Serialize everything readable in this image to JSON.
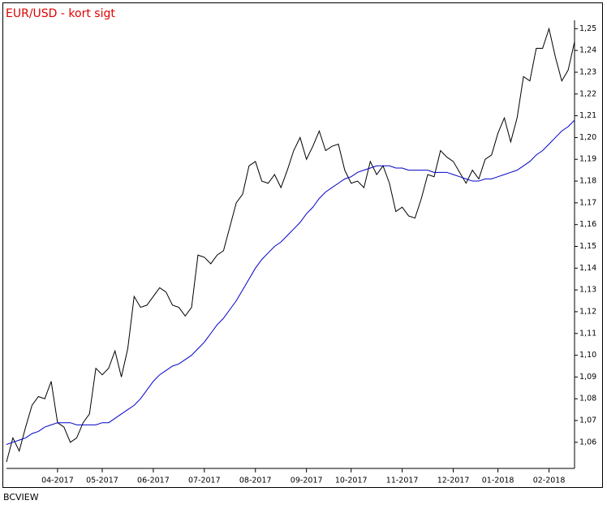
{
  "chart_data": {
    "type": "line",
    "title": "EUR/USD - kort sigt",
    "source": "BCVIEW",
    "categories": [
      null,
      null,
      null,
      null,
      null,
      null,
      null,
      null,
      "04-2017",
      null,
      null,
      null,
      null,
      null,
      null,
      "05-2017",
      null,
      null,
      null,
      null,
      null,
      null,
      null,
      "06-2017",
      null,
      null,
      null,
      null,
      null,
      null,
      null,
      "07-2017",
      null,
      null,
      null,
      null,
      null,
      null,
      null,
      "08-2017",
      null,
      null,
      null,
      null,
      null,
      null,
      null,
      "09-2017",
      null,
      null,
      null,
      null,
      null,
      null,
      "10-2017",
      null,
      null,
      null,
      null,
      null,
      null,
      null,
      "11-2017",
      null,
      null,
      null,
      null,
      null,
      null,
      null,
      "12-2017",
      null,
      null,
      null,
      null,
      null,
      null,
      "01-2018",
      null,
      null,
      null,
      null,
      null,
      null,
      null,
      "02-2018",
      null,
      null,
      null,
      null
    ],
    "series": [
      {
        "color": "#000000",
        "values": [
          1.051,
          1.062,
          1.056,
          1.067,
          1.077,
          1.081,
          1.08,
          1.088,
          1.069,
          1.067,
          1.06,
          1.062,
          1.069,
          1.073,
          1.094,
          1.091,
          1.094,
          1.102,
          1.09,
          1.103,
          1.127,
          1.122,
          1.123,
          1.127,
          1.131,
          1.129,
          1.123,
          1.122,
          1.118,
          1.122,
          1.146,
          1.145,
          1.142,
          1.146,
          1.148,
          1.159,
          1.17,
          1.174,
          1.187,
          1.189,
          1.18,
          1.179,
          1.183,
          1.177,
          1.185,
          1.194,
          1.2,
          1.19,
          1.196,
          1.203,
          1.194,
          1.196,
          1.197,
          1.185,
          1.179,
          1.18,
          1.177,
          1.189,
          1.183,
          1.187,
          1.179,
          1.166,
          1.168,
          1.164,
          1.163,
          1.172,
          1.183,
          1.182,
          1.194,
          1.191,
          1.189,
          1.184,
          1.179,
          1.185,
          1.181,
          1.19,
          1.192,
          1.202,
          1.209,
          1.198,
          1.209,
          1.228,
          1.226,
          1.241,
          1.241,
          1.25,
          1.237,
          1.226,
          1.231,
          1.244
        ]
      },
      {
        "color": "#0000cc",
        "values": [
          1.059,
          1.06,
          1.061,
          1.062,
          1.064,
          1.065,
          1.067,
          1.068,
          1.069,
          1.069,
          1.069,
          1.068,
          1.068,
          1.068,
          1.068,
          1.069,
          1.069,
          1.071,
          1.073,
          1.075,
          1.077,
          1.08,
          1.084,
          1.088,
          1.091,
          1.093,
          1.095,
          1.096,
          1.098,
          1.1,
          1.103,
          1.106,
          1.11,
          1.114,
          1.117,
          1.121,
          1.125,
          1.13,
          1.135,
          1.14,
          1.144,
          1.147,
          1.15,
          1.152,
          1.155,
          1.158,
          1.161,
          1.165,
          1.168,
          1.172,
          1.175,
          1.177,
          1.179,
          1.181,
          1.182,
          1.184,
          1.185,
          1.186,
          1.187,
          1.187,
          1.187,
          1.186,
          1.186,
          1.185,
          1.185,
          1.185,
          1.185,
          1.184,
          1.184,
          1.184,
          1.183,
          1.182,
          1.181,
          1.18,
          1.18,
          1.181,
          1.181,
          1.182,
          1.183,
          1.184,
          1.185,
          1.187,
          1.189,
          1.192,
          1.194,
          1.197,
          1.2,
          1.203,
          1.205,
          1.208
        ]
      }
    ],
    "ylim": [
      1.048,
      1.252
    ],
    "yticks": [
      {
        "value": 1.06,
        "label": "1,06"
      },
      {
        "value": 1.07,
        "label": "1,07"
      },
      {
        "value": 1.08,
        "label": "1,08"
      },
      {
        "value": 1.09,
        "label": "1,09"
      },
      {
        "value": 1.1,
        "label": "1,10"
      },
      {
        "value": 1.11,
        "label": "1,11"
      },
      {
        "value": 1.12,
        "label": "1,12"
      },
      {
        "value": 1.13,
        "label": "1,13"
      },
      {
        "value": 1.14,
        "label": "1,14"
      },
      {
        "value": 1.15,
        "label": "1,15"
      },
      {
        "value": 1.16,
        "label": "1,16"
      },
      {
        "value": 1.17,
        "label": "1,17"
      },
      {
        "value": 1.18,
        "label": "1,18"
      },
      {
        "value": 1.19,
        "label": "1,19"
      },
      {
        "value": 1.2,
        "label": "1,20"
      },
      {
        "value": 1.21,
        "label": "1,21"
      },
      {
        "value": 1.22,
        "label": "1,22"
      },
      {
        "value": 1.23,
        "label": "1,23"
      },
      {
        "value": 1.24,
        "label": "1,24"
      },
      {
        "value": 1.25,
        "label": "1,25"
      }
    ],
    "title_color": "#e00000",
    "grid": false
  }
}
